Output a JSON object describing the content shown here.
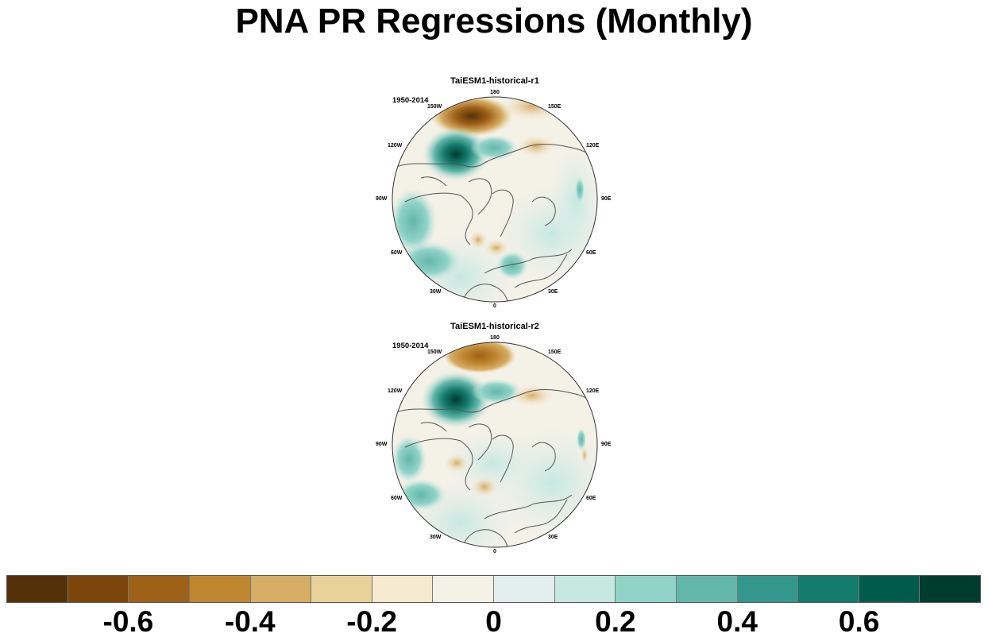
{
  "title": "PNA PR Regressions (Monthly)",
  "panels": [
    {
      "name": "TaiESM1-historical-r1",
      "period": "1950-2014",
      "lon_labels": [
        "180",
        "150E",
        "120E",
        "90E",
        "60E",
        "30E",
        "0",
        "30W",
        "60W",
        "90W",
        "120W",
        "150W"
      ]
    },
    {
      "name": "TaiESM1-historical-r2",
      "period": "1950-2014",
      "lon_labels": [
        "180",
        "150E",
        "120E",
        "90E",
        "60E",
        "30E",
        "0",
        "30W",
        "60W",
        "90W",
        "120W",
        "150W"
      ]
    }
  ],
  "colorbar": {
    "colors": [
      "#553109",
      "#7b440b",
      "#9d6117",
      "#bf8630",
      "#d6ad65",
      "#e8d29a",
      "#f5ead0",
      "#f4f1e7",
      "#e2eeec",
      "#c5e8e1",
      "#92d3c8",
      "#63b7aa",
      "#33978d",
      "#147a6c",
      "#005b4c",
      "#003b30"
    ],
    "ticks": [
      {
        "value": -0.6,
        "label": "-0.6"
      },
      {
        "value": -0.4,
        "label": "-0.4"
      },
      {
        "value": -0.2,
        "label": "-0.2"
      },
      {
        "value": 0,
        "label": "0"
      },
      {
        "value": 0.2,
        "label": "0.2"
      },
      {
        "value": 0.4,
        "label": "0.4"
      },
      {
        "value": 0.6,
        "label": "0.6"
      }
    ]
  }
}
